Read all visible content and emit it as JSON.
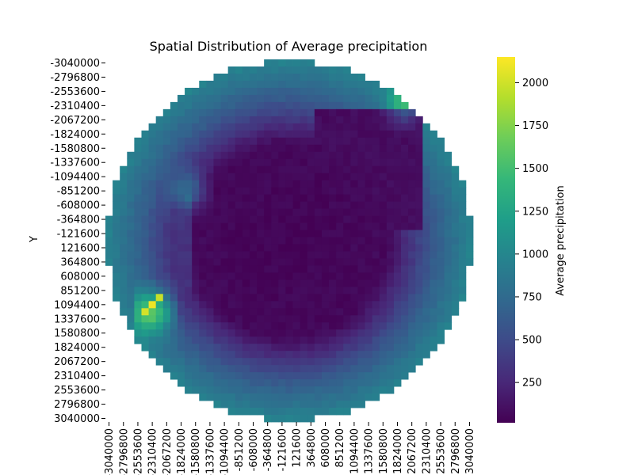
{
  "chart_data": {
    "type": "heatmap",
    "title": "Spatial Distribution of Average precipitation",
    "xlabel": "",
    "ylabel": "Y",
    "colorbar_label": "Average precipitation",
    "colormap": "viridis",
    "value_range": [
      15,
      2150
    ],
    "colorbar_ticks": [
      250,
      500,
      750,
      1000,
      1250,
      1500,
      1750,
      2000
    ],
    "x_tick_labels": [
      "-3040000",
      "-2796800",
      "-2553600",
      "-2310400",
      "-2067200",
      "-1824000",
      "-1580800",
      "-1337600",
      "-1094400",
      "-851200",
      "-608000",
      "-364800",
      "-121600",
      "121600",
      "364800",
      "608000",
      "851200",
      "1094400",
      "1337600",
      "1580800",
      "1824000",
      "2067200",
      "2310400",
      "2553600",
      "2796800",
      "3040000"
    ],
    "y_tick_labels": [
      "-3040000",
      "-2796800",
      "-2553600",
      "-2310400",
      "-2067200",
      "-1824000",
      "-1580800",
      "-1337600",
      "-1094400",
      "-851200",
      "-608000",
      "-364800",
      "-121600",
      "121600",
      "364800",
      "608000",
      "851200",
      "1094400",
      "1337600",
      "1580800",
      "1824000",
      "2067200",
      "2310400",
      "2553600",
      "2796800",
      "3040000"
    ],
    "grid": false,
    "legend": "colorbar-right",
    "data_pattern": "Circular domain of ~51x51 cells: very dry interior (~20-200) over the continent, moderate coastal values (~600-1000), local maxima up to ~2100 along the western peninsula coast near Y 851200-1337600"
  }
}
